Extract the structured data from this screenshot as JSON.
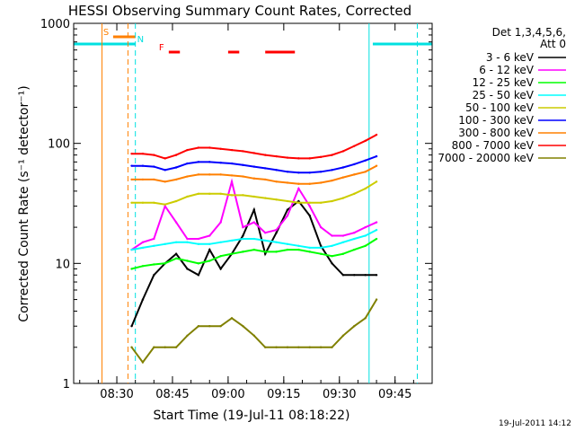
{
  "chart_data": {
    "type": "line",
    "title": "HESSI Observing Summary Count Rates, Corrected",
    "xlabel": "Start Time (19-Jul-11 08:18:22)",
    "ylabel": "Corrected Count Rate (s⁻¹ detector⁻¹)",
    "yscale": "log",
    "ylim": [
      1,
      1000
    ],
    "xlim": [
      "08:18:22",
      "09:55:00"
    ],
    "x_ticks": [
      "08:30",
      "08:45",
      "09:00",
      "09:15",
      "09:30",
      "09:45"
    ],
    "y_ticks": [
      "1",
      "10",
      "100",
      "1000"
    ],
    "footer_date": "19-Jul-2011 14:12",
    "legend": {
      "header_line1": "Det 1,3,4,5,6,",
      "header_line2": "Att 0",
      "position": "right"
    },
    "flags": [
      {
        "label": "S",
        "color": "#ff8000",
        "bars": [
          [
            "08:29",
            "08:35"
          ]
        ]
      },
      {
        "label": "N",
        "color": "#00e0e0",
        "bars": [
          [
            "08:18:22",
            "08:35"
          ],
          [
            "09:39",
            "09:55"
          ]
        ]
      },
      {
        "label": "F",
        "color": "#ff0000",
        "bars": [
          [
            "08:44",
            "08:47"
          ],
          [
            "09:00",
            "09:03"
          ],
          [
            "09:10",
            "09:18"
          ]
        ]
      }
    ],
    "vertical_lines": [
      {
        "time": "08:26",
        "color": "#ff8000",
        "style": "solid"
      },
      {
        "time": "08:33",
        "color": "#ff8000",
        "style": "dashed"
      },
      {
        "time": "08:35",
        "color": "#00e0e0",
        "style": "dashed"
      },
      {
        "time": "09:38",
        "color": "#00e0e0",
        "style": "solid"
      },
      {
        "time": "09:51",
        "color": "#00e0e0",
        "style": "dashed"
      }
    ],
    "x": [
      "08:34",
      "08:37",
      "08:40",
      "08:43",
      "08:46",
      "08:49",
      "08:52",
      "08:55",
      "08:58",
      "09:01",
      "09:04",
      "09:07",
      "09:10",
      "09:13",
      "09:16",
      "09:19",
      "09:22",
      "09:25",
      "09:28",
      "09:31",
      "09:34",
      "09:37",
      "09:40"
    ],
    "series": [
      {
        "name": "3 - 6 keV",
        "color": "#000000",
        "values": [
          3,
          5,
          8,
          10,
          12,
          9,
          8,
          13,
          9,
          12,
          17,
          28,
          12,
          18,
          28,
          33,
          25,
          14,
          10,
          8,
          8,
          8,
          8
        ]
      },
      {
        "name": "6 - 12 keV",
        "color": "#ff00ff",
        "values": [
          13,
          15,
          16,
          30,
          22,
          16,
          16,
          17,
          22,
          48,
          20,
          22,
          18,
          19,
          25,
          42,
          30,
          20,
          17,
          17,
          18,
          20,
          22
        ]
      },
      {
        "name": "12 - 25 keV",
        "color": "#00ff00",
        "values": [
          9,
          9.5,
          9.8,
          10,
          11,
          10.5,
          10,
          10.5,
          11.5,
          12,
          12.5,
          13,
          12.5,
          12.5,
          13,
          13,
          12.5,
          12,
          11.5,
          12,
          13,
          14,
          16
        ]
      },
      {
        "name": "25 - 50 keV",
        "color": "#00ffff",
        "values": [
          13,
          13.5,
          14,
          14.5,
          15,
          15,
          14.5,
          14.5,
          15,
          15.5,
          16,
          16,
          15.5,
          15,
          14.5,
          14,
          13.5,
          13.5,
          14,
          15,
          16,
          17,
          19
        ]
      },
      {
        "name": "50 - 100 keV",
        "color": "#cccc00",
        "values": [
          32,
          32,
          32,
          31,
          33,
          36,
          38,
          38,
          38,
          37,
          37,
          36,
          35,
          34,
          33,
          32,
          32,
          32,
          33,
          35,
          38,
          42,
          48
        ]
      },
      {
        "name": "100 - 300 keV",
        "color": "#0000ff",
        "values": [
          65,
          65,
          64,
          60,
          63,
          68,
          70,
          70,
          69,
          68,
          66,
          64,
          62,
          60,
          58,
          57,
          57,
          58,
          60,
          63,
          67,
          72,
          78
        ]
      },
      {
        "name": "300 - 800 keV",
        "color": "#ff8000",
        "values": [
          50,
          50,
          50,
          48,
          50,
          53,
          55,
          55,
          55,
          54,
          53,
          51,
          50,
          48,
          47,
          46,
          46,
          47,
          49,
          52,
          55,
          58,
          65
        ]
      },
      {
        "name": "800 - 7000 keV",
        "color": "#ff0000",
        "values": [
          82,
          82,
          80,
          75,
          80,
          88,
          92,
          92,
          90,
          88,
          86,
          83,
          80,
          78,
          76,
          75,
          75,
          77,
          80,
          86,
          95,
          105,
          118
        ]
      },
      {
        "name": "7000 - 20000 keV",
        "color": "#808000",
        "values": [
          2,
          1.5,
          2,
          2,
          2,
          2.5,
          3,
          3,
          3,
          3.5,
          3,
          2.5,
          2,
          2,
          2,
          2,
          2,
          2,
          2,
          2.5,
          3,
          3.5,
          5
        ]
      }
    ]
  }
}
